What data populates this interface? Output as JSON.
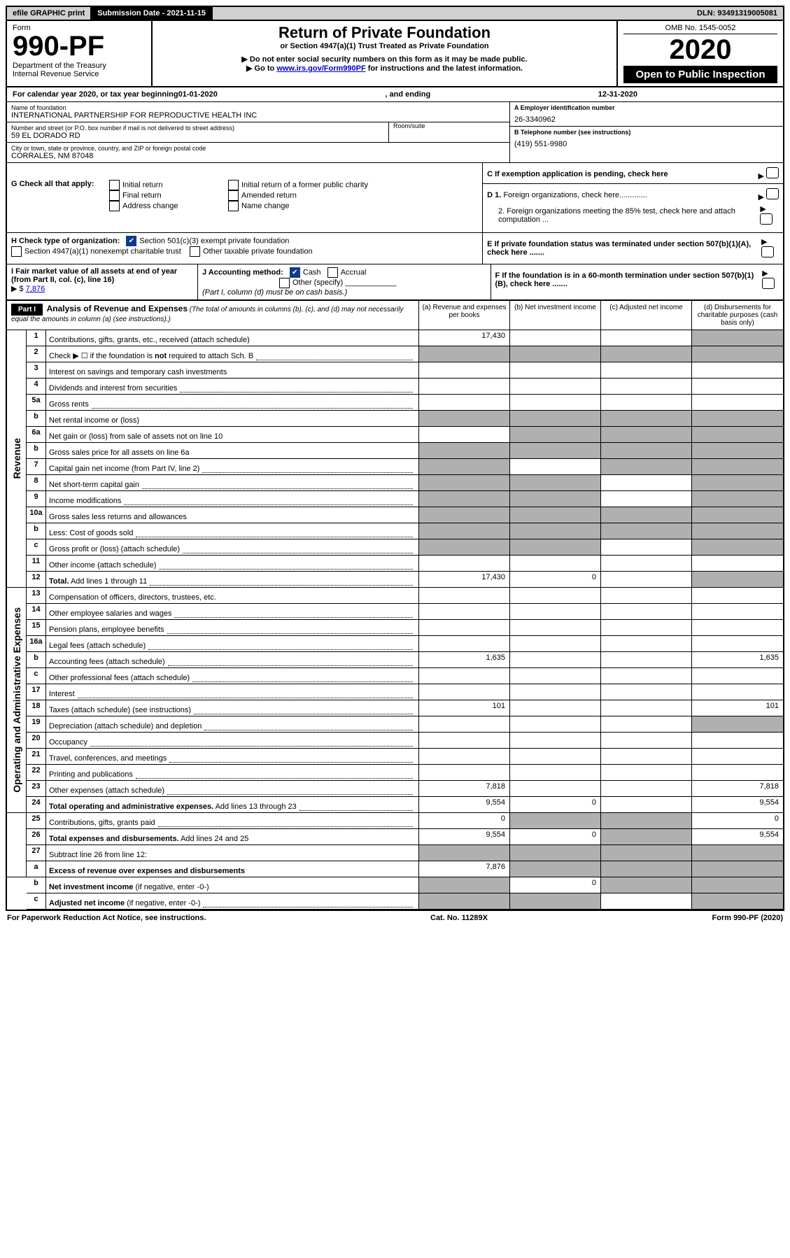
{
  "topbar": {
    "efile": "efile GRAPHIC print",
    "submission_label": "Submission Date - ",
    "submission_date": "2021-11-15",
    "dln_label": "DLN: ",
    "dln": "93491319005081"
  },
  "header": {
    "form_word": "Form",
    "form_no": "990-PF",
    "dept": "Department of the Treasury",
    "irs": "Internal Revenue Service",
    "title": "Return of Private Foundation",
    "subtitle": "or Section 4947(a)(1) Trust Treated as Private Foundation",
    "warn": "▶ Do not enter social security numbers on this form as it may be made public.",
    "goto_pre": "▶ Go to ",
    "goto_link": "www.irs.gov/Form990PF",
    "goto_post": " for instructions and the latest information.",
    "omb": "OMB No. 1545-0052",
    "year": "2020",
    "open": "Open to Public Inspection"
  },
  "cal": {
    "prefix": "For calendar year 2020, or tax year beginning ",
    "begin": "01-01-2020",
    "mid": ", and ending ",
    "end": "12-31-2020"
  },
  "id": {
    "name_label": "Name of foundation",
    "name": "INTERNATIONAL PARTNERSHIP FOR REPRODUCTIVE HEALTH INC",
    "addr_label": "Number and street (or P.O. box number if mail is not delivered to street address)",
    "addr": "59 EL DORADO RD",
    "room_label": "Room/suite",
    "city_label": "City or town, state or province, country, and ZIP or foreign postal code",
    "city": "CORRALES, NM  87048",
    "ein_label": "A Employer identification number",
    "ein": "26-3340962",
    "tel_label": "B Telephone number (see instructions)",
    "tel": "(419) 551-9980",
    "c_label": "C  If exemption application is pending, check here",
    "d1": "D 1. Foreign organizations, check here.............",
    "d2": "2. Foreign organizations meeting the 85% test, check here and attach computation ...",
    "e_label": "E  If private foundation status was terminated under section 507(b)(1)(A), check here .......",
    "f_label": "F  If the foundation is in a 60-month termination under section 507(b)(1)(B), check here .......",
    "g_label": "G Check all that apply:",
    "g_opts": [
      "Initial return",
      "Final return",
      "Address change",
      "Initial return of a former public charity",
      "Amended return",
      "Name change"
    ],
    "h_label": "H Check type of organization:",
    "h1": "Section 501(c)(3) exempt private foundation",
    "h2": "Section 4947(a)(1) nonexempt charitable trust",
    "h3": "Other taxable private foundation",
    "i_label": "I Fair market value of all assets at end of year (from Part II, col. (c), line 16)",
    "i_arrow": "▶ $",
    "i_val": "7,876",
    "j_label": "J Accounting method:",
    "j_cash": "Cash",
    "j_accrual": "Accrual",
    "j_other": "Other (specify)",
    "j_note": "(Part I, column (d) must be on cash basis.)"
  },
  "p1head": {
    "part": "Part I",
    "title": "Analysis of Revenue and Expenses",
    "note": " (The total of amounts in columns (b), (c), and (d) may not necessarily equal the amounts in column (a) (see instructions).)",
    "ca": "(a)  Revenue and expenses per books",
    "cb": "(b)  Net investment income",
    "cc": "(c)  Adjusted net income",
    "cd": "(d)  Disbursements for charitable purposes (cash basis only)"
  },
  "vlabels": {
    "rev": "Revenue",
    "oae": "Operating and Administrative Expenses"
  },
  "rows": [
    {
      "n": "1",
      "l": "Contributions, gifts, grants, etc., received (attach schedule)",
      "d": 0,
      "a": "17,430",
      "s": [
        0,
        0,
        0,
        1
      ]
    },
    {
      "n": "2",
      "l": "Check ▶ ☐ if the foundation is <b>not</b> required to attach Sch. B",
      "d": 1,
      "s": [
        1,
        1,
        1,
        1
      ]
    },
    {
      "n": "3",
      "l": "Interest on savings and temporary cash investments",
      "d": 0
    },
    {
      "n": "4",
      "l": "Dividends and interest from securities",
      "d": 1
    },
    {
      "n": "5a",
      "l": "Gross rents",
      "d": 1
    },
    {
      "n": "b",
      "l": "Net rental income or (loss)",
      "d": 0,
      "s": [
        1,
        1,
        1,
        1
      ]
    },
    {
      "n": "6a",
      "l": "Net gain or (loss) from sale of assets not on line 10",
      "d": 0,
      "s": [
        0,
        1,
        1,
        1
      ]
    },
    {
      "n": "b",
      "l": "Gross sales price for all assets on line 6a",
      "d": 0,
      "s": [
        1,
        1,
        1,
        1
      ]
    },
    {
      "n": "7",
      "l": "Capital gain net income (from Part IV, line 2)",
      "d": 1,
      "s": [
        1,
        0,
        1,
        1
      ]
    },
    {
      "n": "8",
      "l": "Net short-term capital gain",
      "d": 1,
      "s": [
        1,
        1,
        0,
        1
      ]
    },
    {
      "n": "9",
      "l": "Income modifications",
      "d": 1,
      "s": [
        1,
        1,
        0,
        1
      ]
    },
    {
      "n": "10a",
      "l": "Gross sales less returns and allowances",
      "d": 0,
      "s": [
        1,
        1,
        1,
        1
      ]
    },
    {
      "n": "b",
      "l": "Less: Cost of goods sold",
      "d": 1,
      "s": [
        1,
        1,
        1,
        1
      ]
    },
    {
      "n": "c",
      "l": "Gross profit or (loss) (attach schedule)",
      "d": 1,
      "s": [
        1,
        1,
        0,
        1
      ]
    },
    {
      "n": "11",
      "l": "Other income (attach schedule)",
      "d": 1
    },
    {
      "n": "12",
      "l": "<b>Total.</b> Add lines 1 through 11",
      "d": 1,
      "a": "17,430",
      "b": "0",
      "s": [
        0,
        0,
        0,
        1
      ]
    },
    {
      "n": "13",
      "l": "Compensation of officers, directors, trustees, etc.",
      "d": 0
    },
    {
      "n": "14",
      "l": "Other employee salaries and wages",
      "d": 1
    },
    {
      "n": "15",
      "l": "Pension plans, employee benefits",
      "d": 1
    },
    {
      "n": "16a",
      "l": "Legal fees (attach schedule)",
      "d": 1
    },
    {
      "n": "b",
      "l": "Accounting fees (attach schedule)",
      "d": 1,
      "a": "1,635",
      "dv": "1,635"
    },
    {
      "n": "c",
      "l": "Other professional fees (attach schedule)",
      "d": 1
    },
    {
      "n": "17",
      "l": "Interest",
      "d": 1
    },
    {
      "n": "18",
      "l": "Taxes (attach schedule) (see instructions)",
      "d": 1,
      "a": "101",
      "dv": "101"
    },
    {
      "n": "19",
      "l": "Depreciation (attach schedule) and depletion",
      "d": 1,
      "s": [
        0,
        0,
        0,
        1
      ]
    },
    {
      "n": "20",
      "l": "Occupancy",
      "d": 1
    },
    {
      "n": "21",
      "l": "Travel, conferences, and meetings",
      "d": 1
    },
    {
      "n": "22",
      "l": "Printing and publications",
      "d": 1
    },
    {
      "n": "23",
      "l": "Other expenses (attach schedule)",
      "d": 1,
      "a": "7,818",
      "dv": "7,818"
    },
    {
      "n": "24",
      "l": "<b>Total operating and administrative expenses.</b> Add lines 13 through 23",
      "d": 1,
      "a": "9,554",
      "b": "0",
      "dv": "9,554"
    },
    {
      "n": "25",
      "l": "Contributions, gifts, grants paid",
      "d": 1,
      "a": "0",
      "dv": "0",
      "s": [
        0,
        1,
        1,
        0
      ]
    },
    {
      "n": "26",
      "l": "<b>Total expenses and disbursements.</b> Add lines 24 and 25",
      "d": 0,
      "a": "9,554",
      "b": "0",
      "dv": "9,554",
      "s": [
        0,
        0,
        1,
        0
      ]
    },
    {
      "n": "27",
      "l": "Subtract line 26 from line 12:",
      "d": 0,
      "s": [
        1,
        1,
        1,
        1
      ]
    },
    {
      "n": "a",
      "l": "<b>Excess of revenue over expenses and disbursements</b>",
      "d": 0,
      "a": "7,876",
      "s": [
        0,
        1,
        1,
        1
      ]
    },
    {
      "n": "b",
      "l": "<b>Net investment income</b> (if negative, enter -0-)",
      "d": 0,
      "b": "0",
      "s": [
        1,
        0,
        1,
        1
      ]
    },
    {
      "n": "c",
      "l": "<b>Adjusted net income</b> (if negative, enter -0-)",
      "d": 1,
      "s": [
        1,
        1,
        0,
        1
      ]
    }
  ],
  "footer": {
    "left": "For Paperwork Reduction Act Notice, see instructions.",
    "mid": "Cat. No. 11289X",
    "right": "Form 990-PF (2020)"
  }
}
